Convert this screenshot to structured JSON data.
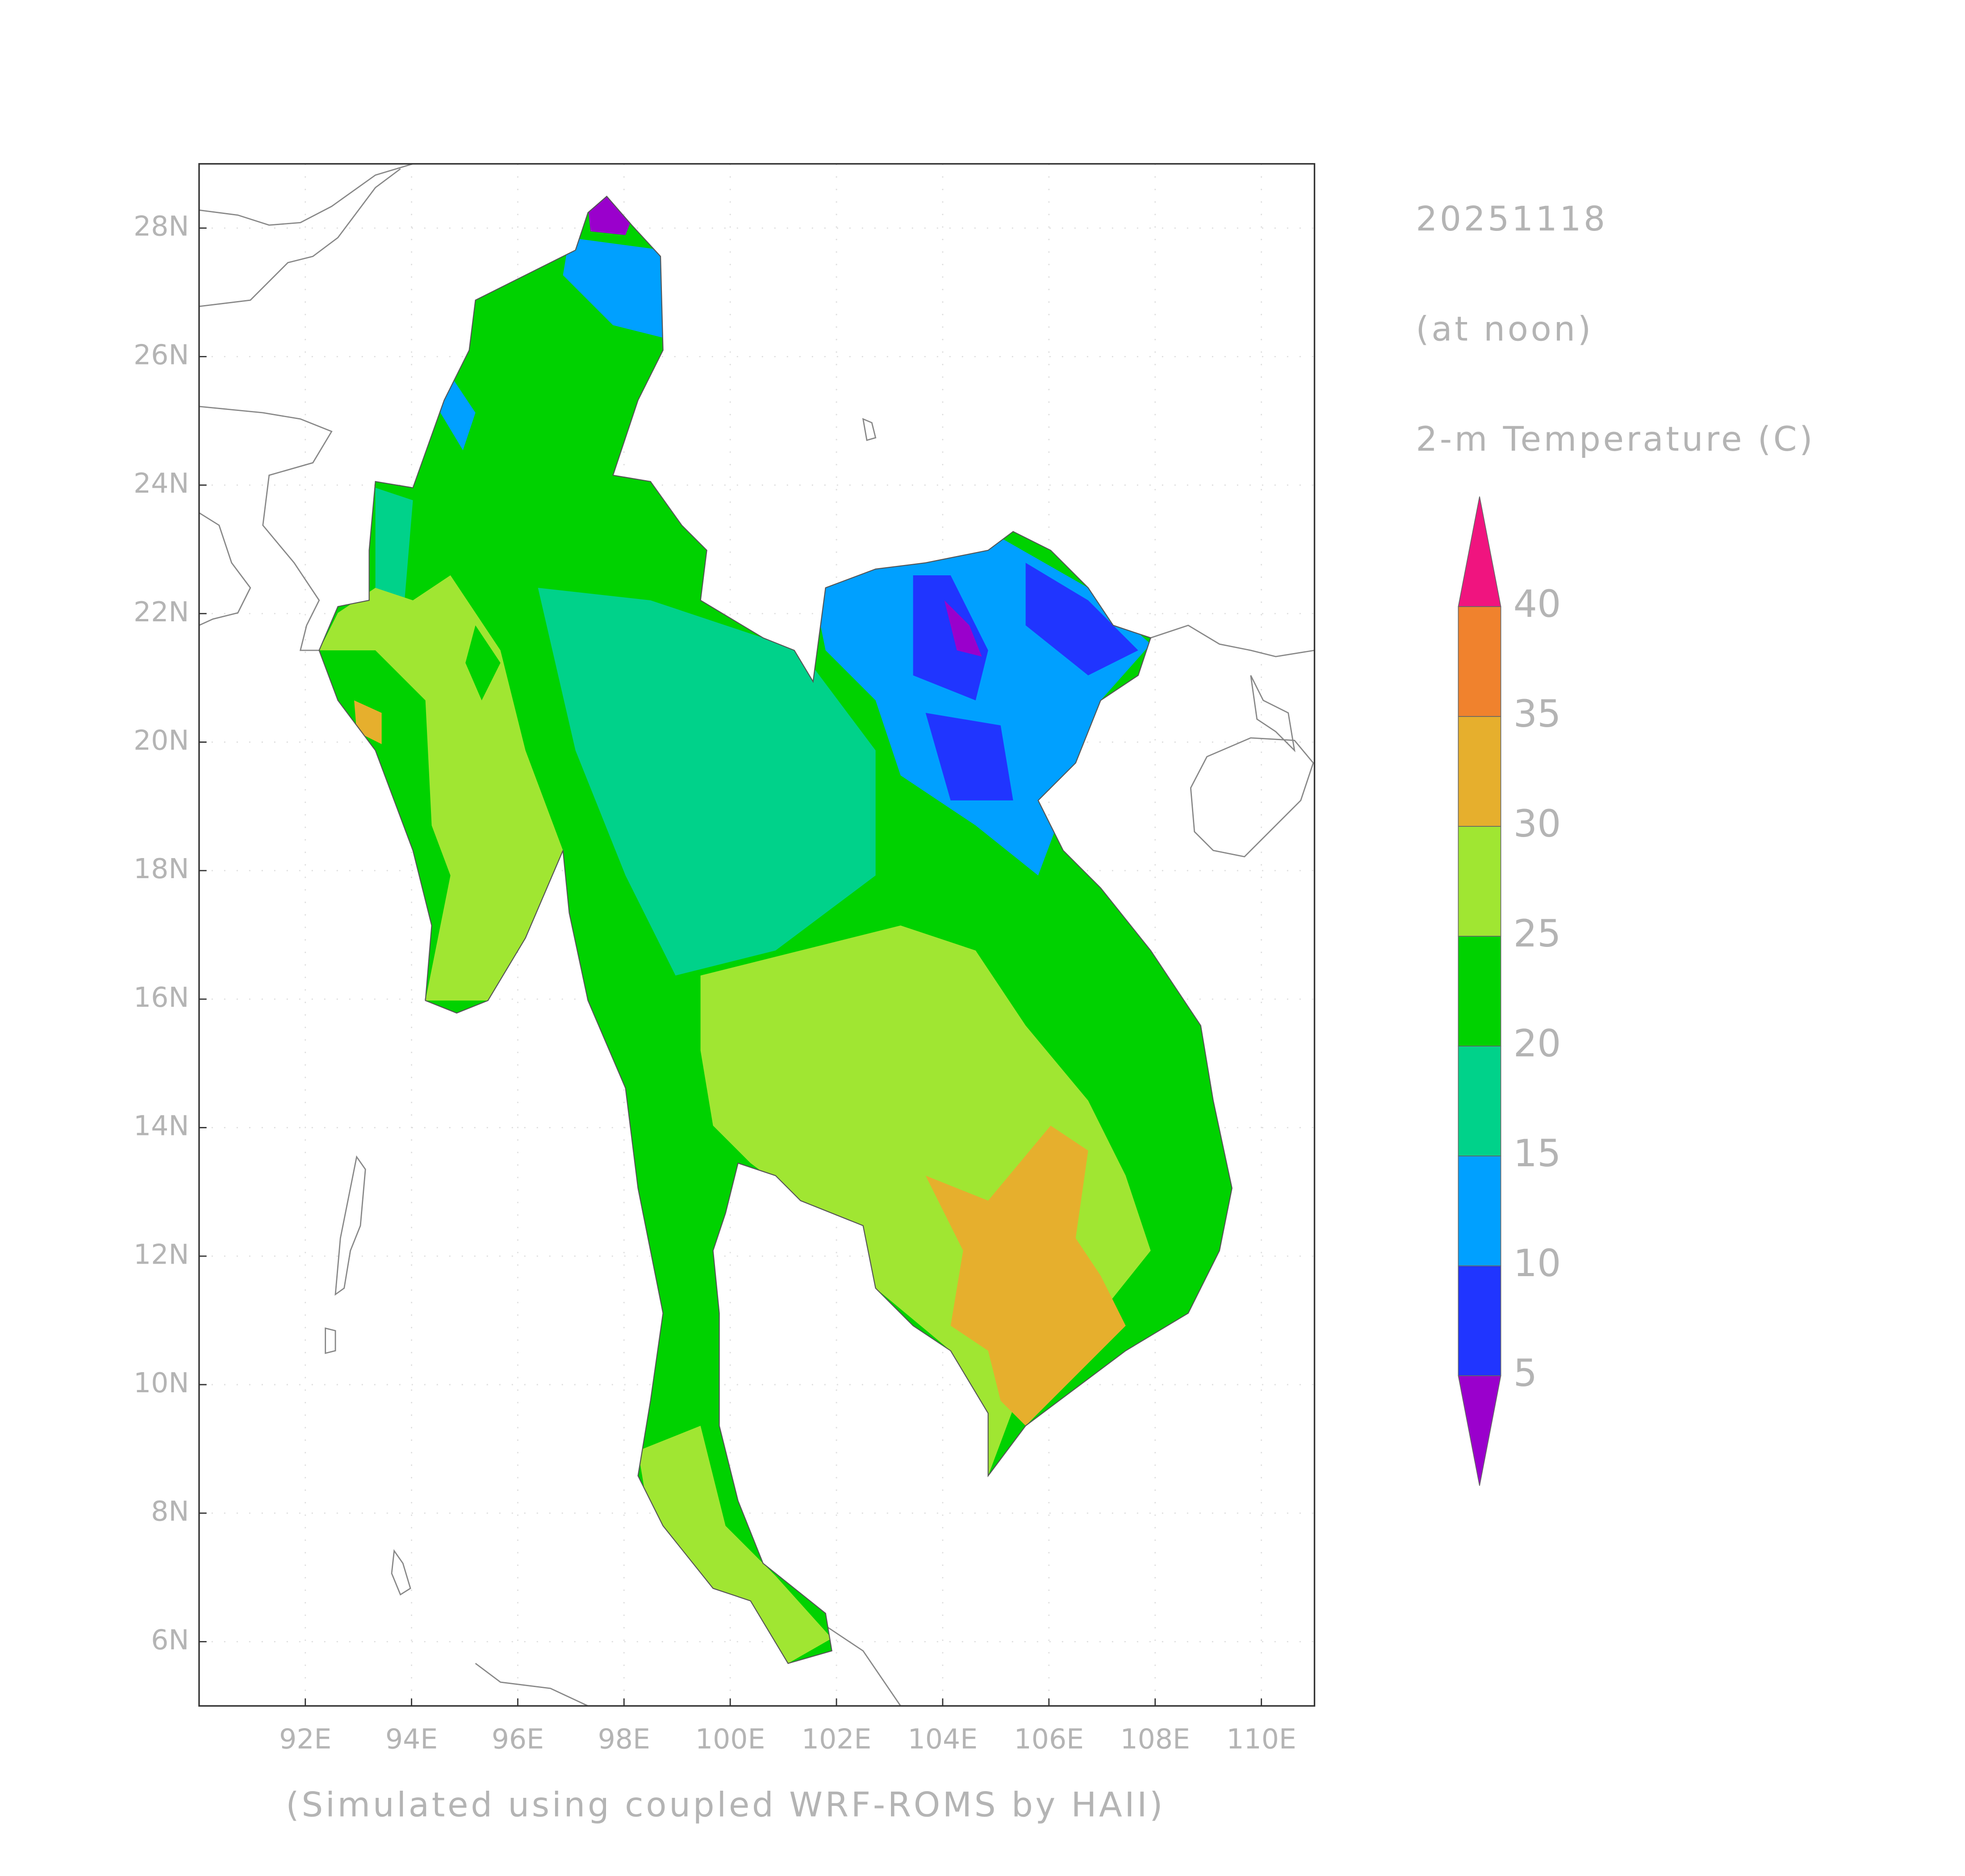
{
  "map_data": {
    "type": "map",
    "date": "20251118",
    "time_label": "(at noon)",
    "variable": "2-m Temperature (C)",
    "credit": "(Simulated using coupled WRF-ROMS by HAII)",
    "xlim": [
      90,
      111
    ],
    "ylim": [
      5,
      29
    ],
    "xticks": [
      {
        "value": 92,
        "label": "92E"
      },
      {
        "value": 94,
        "label": "94E"
      },
      {
        "value": 96,
        "label": "96E"
      },
      {
        "value": 98,
        "label": "98E"
      },
      {
        "value": 100,
        "label": "100E"
      },
      {
        "value": 102,
        "label": "102E"
      },
      {
        "value": 104,
        "label": "104E"
      },
      {
        "value": 106,
        "label": "106E"
      },
      {
        "value": 108,
        "label": "108E"
      },
      {
        "value": 110,
        "label": "110E"
      }
    ],
    "yticks": [
      {
        "value": 6,
        "label": "6N"
      },
      {
        "value": 8,
        "label": "8N"
      },
      {
        "value": 10,
        "label": "10N"
      },
      {
        "value": 12,
        "label": "12N"
      },
      {
        "value": 14,
        "label": "14N"
      },
      {
        "value": 16,
        "label": "16N"
      },
      {
        "value": 18,
        "label": "18N"
      },
      {
        "value": 20,
        "label": "20N"
      },
      {
        "value": 22,
        "label": "22N"
      },
      {
        "value": 24,
        "label": "24N"
      },
      {
        "value": 26,
        "label": "26N"
      },
      {
        "value": 28,
        "label": "28N"
      }
    ],
    "grid": true,
    "colorbar": {
      "levels": [
        5,
        10,
        15,
        20,
        25,
        30,
        35,
        40
      ],
      "colors": [
        "#9a00cc",
        "#2035ff",
        "#00a0ff",
        "#00d28a",
        "#00d200",
        "#a0e632",
        "#e6af2d",
        "#f0822d",
        "#f0147f"
      ]
    }
  }
}
